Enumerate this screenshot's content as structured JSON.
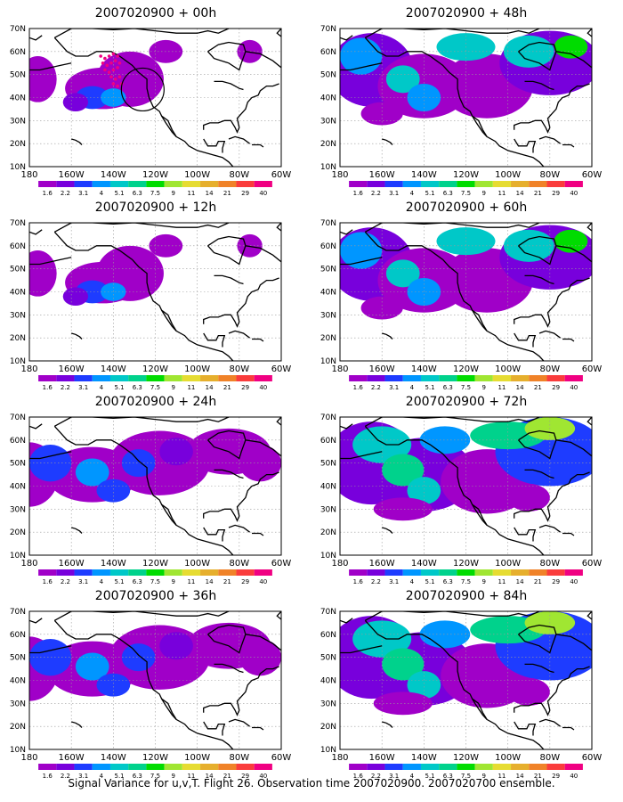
{
  "figure": {
    "caption": "Signal Variance for u,v,T. Flight 26. Observation time 2007020900. 2007020700 ensemble."
  },
  "map": {
    "lat_ticks": [
      "70N",
      "60N",
      "50N",
      "40N",
      "30N",
      "20N",
      "10N"
    ],
    "lon_ticks": [
      "180",
      "160W",
      "140W",
      "120W",
      "100W",
      "80W",
      "60W"
    ],
    "colorbar_labels": [
      "1.6",
      "2.2",
      "3.1",
      "4",
      "5.1",
      "6.3",
      "7.5",
      "9",
      "11",
      "14",
      "21",
      "29",
      "40"
    ],
    "colorbar_colors": [
      "#a000c8",
      "#7800dc",
      "#1e3cff",
      "#0096ff",
      "#00c8c8",
      "#00d28c",
      "#00dc00",
      "#a0e632",
      "#e6dc32",
      "#e6af2d",
      "#f08228",
      "#fa3c3c",
      "#f00082"
    ],
    "ocean_fill_color": "#ffffff",
    "coast_color": "#000000"
  },
  "panels": [
    {
      "title": "2007020900 + 00h",
      "fill": "low",
      "dots": true,
      "circle": true
    },
    {
      "title": "2007020900 + 12h",
      "fill": "low",
      "dots": false,
      "circle": false
    },
    {
      "title": "2007020900 + 24h",
      "fill": "mid",
      "dots": false,
      "circle": false
    },
    {
      "title": "2007020900 + 36h",
      "fill": "mid",
      "dots": false,
      "circle": false
    },
    {
      "title": "2007020900 + 48h",
      "fill": "mid-high",
      "dots": false,
      "circle": false
    },
    {
      "title": "2007020900 + 60h",
      "fill": "mid-high",
      "dots": false,
      "circle": false
    },
    {
      "title": "2007020900 + 72h",
      "fill": "high",
      "dots": false,
      "circle": false
    },
    {
      "title": "2007020900 + 84h",
      "fill": "high",
      "dots": false,
      "circle": false
    }
  ]
}
